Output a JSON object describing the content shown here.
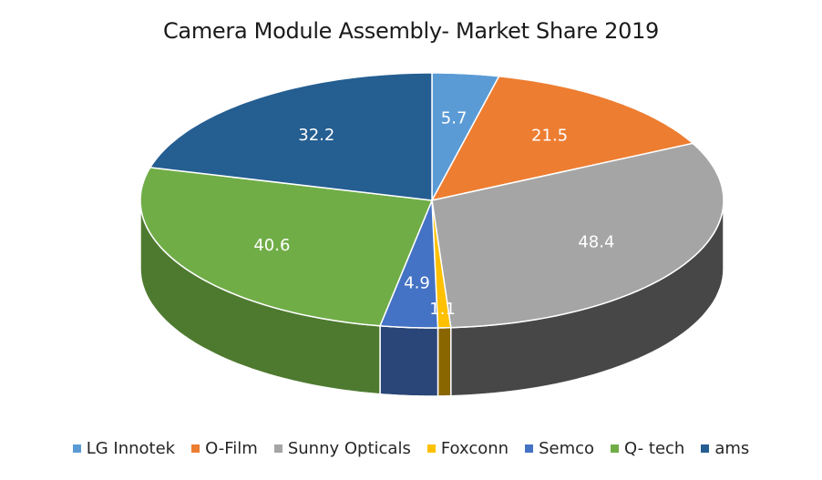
{
  "chart_data": {
    "type": "pie",
    "style": "3d",
    "title": "Camera Module Assembly- Market Share 2019",
    "categories": [
      "LG Innotek",
      "O-Film",
      "Sunny Opticals",
      "Foxconn",
      "Semco",
      "Q- tech",
      "ams"
    ],
    "values": [
      5.7,
      21.5,
      48.4,
      1.1,
      4.9,
      40.6,
      32.2
    ],
    "colors": [
      "#5B9BD5",
      "#ED7D31",
      "#A5A5A5",
      "#FFC000",
      "#4472C4",
      "#70AD47",
      "#255E91"
    ],
    "side_colors": [
      "#3F74A6",
      "#B05A20",
      "#474747",
      "#8A6600",
      "#2A4577",
      "#4E7A30",
      "#1A4066"
    ],
    "data_labels": [
      "5.7",
      "21.5",
      "48.4",
      "1.1",
      "4.9",
      "40.6",
      "32.2"
    ],
    "legend_position": "bottom"
  }
}
